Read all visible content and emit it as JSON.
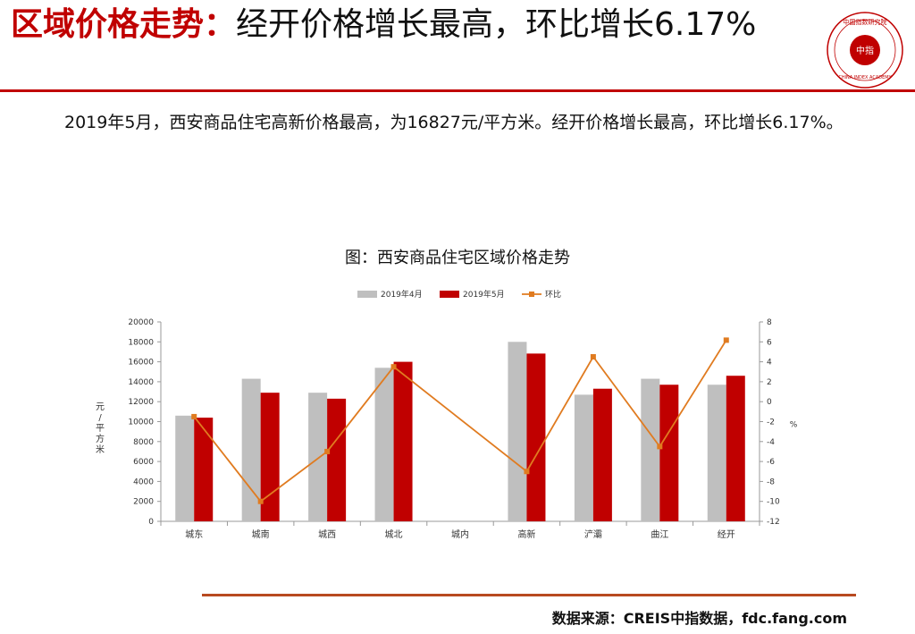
{
  "header": {
    "title_highlight": "区域价格走势：",
    "title_rest": "经开价格增长最高，环比增长6.17%"
  },
  "logo": {
    "ring_text": "中国指数研究院",
    "center_text": "中指",
    "latin_text": "CHINA INDEX ACADEMY",
    "icon": "china-index-academy-seal"
  },
  "summary": "2019年5月，西安商品住宅高新价格最高，为16827元/平方米。经开价格增长最高，环比增长6.17%。",
  "chart_title": "图：西安商品住宅区域价格走势",
  "source": "数据来源：CREIS中指数据，fdc.fang.com",
  "chart_data": {
    "type": "bar",
    "categories": [
      "城东",
      "城南",
      "城西",
      "城北",
      "城内",
      "高新",
      "浐灞",
      "曲江",
      "经开"
    ],
    "series": [
      {
        "name": "2019年4月",
        "type": "bar",
        "axis": "left",
        "color": "#bfbfbf",
        "values": [
          10600,
          14300,
          12900,
          15400,
          null,
          18000,
          12700,
          14300,
          13700
        ]
      },
      {
        "name": "2019年5月",
        "type": "bar",
        "axis": "left",
        "color": "#c00000",
        "values": [
          10400,
          12900,
          12300,
          16000,
          null,
          16827,
          13300,
          13700,
          14600
        ]
      },
      {
        "name": "环比",
        "type": "line",
        "axis": "right",
        "color": "#e07b20",
        "values": [
          -1.5,
          -10,
          -5,
          3.5,
          null,
          -7,
          4.5,
          -4.5,
          6.17
        ]
      }
    ],
    "ylabel": "元/平方米",
    "y2label": "%",
    "ylim": [
      0,
      20000
    ],
    "yticks": [
      0,
      2000,
      4000,
      6000,
      8000,
      10000,
      12000,
      14000,
      16000,
      18000,
      20000
    ],
    "y2lim": [
      -12,
      8
    ],
    "y2ticks": [
      -12,
      -10,
      -8,
      -6,
      -4,
      -2,
      0,
      2,
      4,
      6,
      8
    ],
    "grid": false,
    "legend_position": "top"
  }
}
